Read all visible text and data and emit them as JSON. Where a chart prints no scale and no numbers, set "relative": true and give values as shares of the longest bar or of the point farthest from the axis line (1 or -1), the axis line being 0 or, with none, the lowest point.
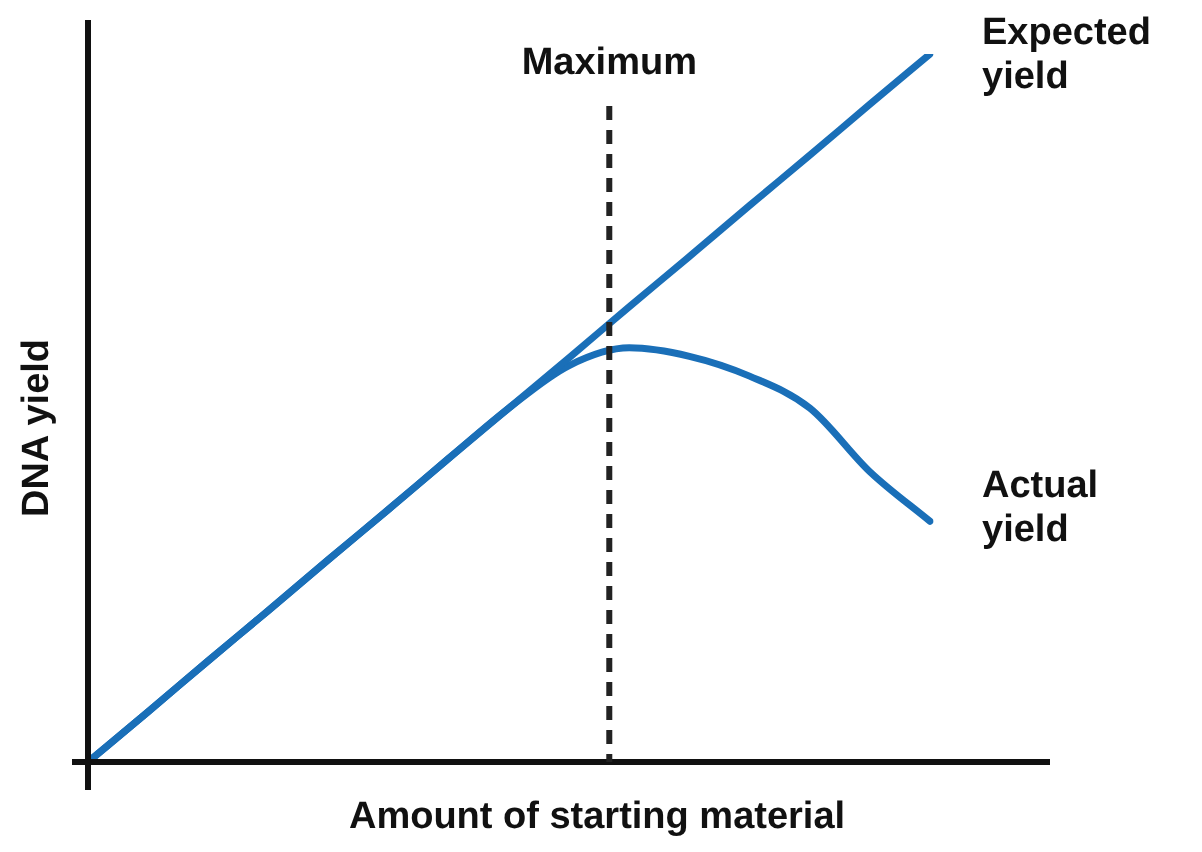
{
  "chart_data": {
    "type": "line",
    "relative": true,
    "xlabel": "Amount of starting material",
    "ylabel": "DNA yield",
    "categories": [
      null,
      null,
      null,
      null,
      null,
      null,
      null,
      null,
      null,
      null,
      null,
      null,
      null,
      null,
      null
    ],
    "series": [
      {
        "name": "Expected yield",
        "color": "#1a6fb8",
        "values": [
          0,
          0.071,
          0.143,
          0.214,
          0.286,
          0.357,
          0.429,
          0.5,
          0.571,
          0.643,
          0.714,
          0.786,
          0.857,
          0.929,
          1
        ]
      },
      {
        "name": "Actual yield",
        "color": "#1a6fb8",
        "values": [
          0,
          0.071,
          0.143,
          0.214,
          0.286,
          0.357,
          0.429,
          0.5,
          0.56,
          0.585,
          0.573,
          0.545,
          0.5,
          0.41,
          0.34
        ]
      }
    ],
    "annotations": [
      "Maximum"
    ],
    "legend": false,
    "marker": "none",
    "line_style": "solid"
  }
}
